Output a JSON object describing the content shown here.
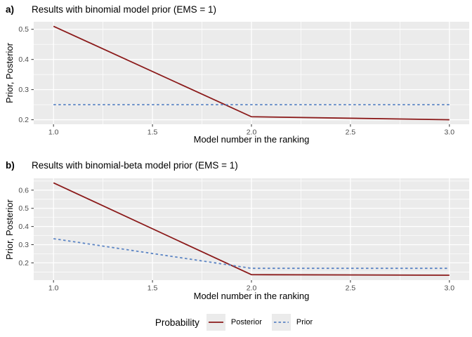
{
  "figure": {
    "background": "#FFFFFF",
    "panel_background": "#EBEBEB",
    "grid_color": "#FFFFFF",
    "tick_mark_color": "#333333",
    "tick_label_color": "#4D4D4D"
  },
  "legend": {
    "title": "Probability",
    "key_background": "#EBEBEB",
    "entries": [
      {
        "label": "Posterior",
        "color": "#8B1A1A",
        "style": "solid"
      },
      {
        "label": "Prior",
        "color": "#5B84C4",
        "style": "dashed"
      }
    ]
  },
  "chart_data": [
    {
      "type": "line",
      "panel_label": "a)",
      "title": "Results with binomial model prior (EMS = 1)",
      "xlabel": "Model number in the ranking",
      "ylabel": "Prior, Posterior",
      "x": [
        1,
        2,
        3
      ],
      "series": [
        {
          "name": "Posterior",
          "values": [
            0.51,
            0.21,
            0.2
          ],
          "color": "#8B1A1A",
          "style": "solid"
        },
        {
          "name": "Prior",
          "values": [
            0.25,
            0.25,
            0.25
          ],
          "color": "#5B84C4",
          "style": "dashed"
        }
      ],
      "xlim": [
        0.9,
        3.1
      ],
      "ylim": [
        0.185,
        0.525
      ],
      "xticks": [
        1.0,
        1.5,
        2.0,
        2.5,
        3.0
      ],
      "yticks": [
        0.2,
        0.3,
        0.4,
        0.5
      ],
      "grid": true,
      "legend_position": "bottom"
    },
    {
      "type": "line",
      "panel_label": "b)",
      "title": "Results with binomial-beta model prior (EMS = 1)",
      "xlabel": "Model number in the ranking",
      "ylabel": "Prior, Posterior",
      "x": [
        1,
        2,
        3
      ],
      "series": [
        {
          "name": "Posterior",
          "values": [
            0.64,
            0.135,
            0.132
          ],
          "color": "#8B1A1A",
          "style": "solid"
        },
        {
          "name": "Prior",
          "values": [
            0.333,
            0.17,
            0.17
          ],
          "color": "#5B84C4",
          "style": "dashed"
        }
      ],
      "xlim": [
        0.9,
        3.1
      ],
      "ylim": [
        0.105,
        0.665
      ],
      "xticks": [
        1.0,
        1.5,
        2.0,
        2.5,
        3.0
      ],
      "yticks": [
        0.2,
        0.3,
        0.4,
        0.5,
        0.6
      ],
      "grid": true,
      "legend_position": "bottom"
    }
  ]
}
